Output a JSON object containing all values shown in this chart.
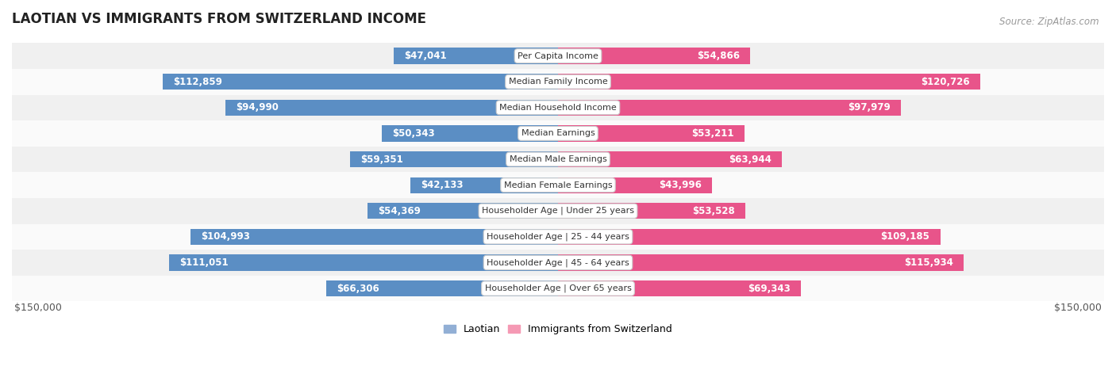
{
  "title": "LAOTIAN VS IMMIGRANTS FROM SWITZERLAND INCOME",
  "source": "Source: ZipAtlas.com",
  "categories": [
    "Per Capita Income",
    "Median Family Income",
    "Median Household Income",
    "Median Earnings",
    "Median Male Earnings",
    "Median Female Earnings",
    "Householder Age | Under 25 years",
    "Householder Age | 25 - 44 years",
    "Householder Age | 45 - 64 years",
    "Householder Age | Over 65 years"
  ],
  "laotian_values": [
    47041,
    112859,
    94990,
    50343,
    59351,
    42133,
    54369,
    104993,
    111051,
    66306
  ],
  "swiss_values": [
    54866,
    120726,
    97979,
    53211,
    63944,
    43996,
    53528,
    109185,
    115934,
    69343
  ],
  "laotian_color": "#92afd5",
  "swiss_color": "#f599b4",
  "laotian_color_dark": "#5b8ec4",
  "swiss_color_dark": "#e8548a",
  "outside_label_color": "#555555",
  "row_bg_even": "#f0f0f0",
  "row_bg_odd": "#fafafa",
  "max_value": 150000,
  "legend_laotian": "Laotian",
  "legend_swiss": "Immigrants from Switzerland",
  "xlabel_left": "$150,000",
  "xlabel_right": "$150,000",
  "title_fontsize": 12,
  "source_fontsize": 8.5,
  "bar_label_fontsize": 8.5,
  "category_fontsize": 8,
  "legend_fontsize": 9,
  "xlabel_fontsize": 9,
  "inside_threshold": 40000
}
